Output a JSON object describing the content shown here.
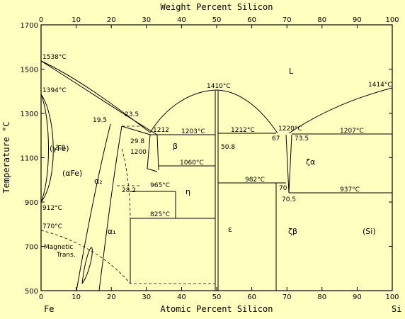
{
  "axes": {
    "top_title": "Weight Percent Silicon",
    "bottom_title": "Atomic Percent Silicon",
    "left_title": "Temperature °C",
    "left_element": "Fe",
    "right_element": "Si",
    "x_ticks": [
      "0",
      "10",
      "20",
      "30",
      "40",
      "50",
      "60",
      "70",
      "80",
      "90",
      "100"
    ],
    "top_ticks": [
      "0",
      "10",
      "20",
      "30",
      "40",
      "50",
      "60",
      "70",
      "80",
      "90",
      "100"
    ],
    "y_ticks": [
      "500",
      "700",
      "900",
      "1100",
      "1300",
      "1500",
      "1700"
    ]
  },
  "phases": {
    "liquid": "L",
    "gamma_fe": "(γFe)",
    "alpha_fe": "(αFe)",
    "alpha2": "α₂",
    "alpha1": "α₁",
    "beta": "β",
    "eta": "η",
    "epsilon": "ε",
    "zeta_alpha": "ζα",
    "zeta_beta": "ζβ",
    "si": "(Si)"
  },
  "labels": {
    "t1538": "1538°C",
    "t1394": "1394°C",
    "t912": "912°C",
    "t770": "770°C",
    "magnetic": "Magnetic",
    "trans": "Trans.",
    "t1410": "1410°C",
    "t1414": "1414°C",
    "t1212a": "1212",
    "t1203": "1203°C",
    "t1212b": "1212°C",
    "t1220": "1220°C",
    "t1207": "1207°C",
    "t1060": "1060°C",
    "t965": "965°C",
    "t982": "982°C",
    "t937": "937°C",
    "t825": "825°C",
    "t1200": "1200",
    "c19_5": "19.5",
    "c23_5": "23.5",
    "c29_8": "29.8",
    "c3_8": "3.8",
    "c28_2": "28.2",
    "c50_8": "50.8",
    "c67": "67",
    "c73_5": "73.5",
    "c70": "70",
    "c70_5": "70.5"
  },
  "chart_data": {
    "type": "phase-diagram",
    "x_unit": "Atomic Percent Silicon",
    "y_unit": "°C",
    "xlim": [
      0,
      100
    ],
    "ylim": [
      500,
      1700
    ],
    "melting_points": [
      {
        "element": "Fe",
        "x": 0,
        "t": 1538
      },
      {
        "element": "Si",
        "x": 100,
        "t": 1414
      }
    ],
    "congruent_points": [
      {
        "x": 50,
        "t": 1410
      }
    ],
    "isotherms": [
      1212,
      1203,
      1220,
      1207,
      1060,
      965,
      982,
      937,
      825
    ],
    "fe_transitions": [
      1394,
      912,
      770
    ]
  }
}
